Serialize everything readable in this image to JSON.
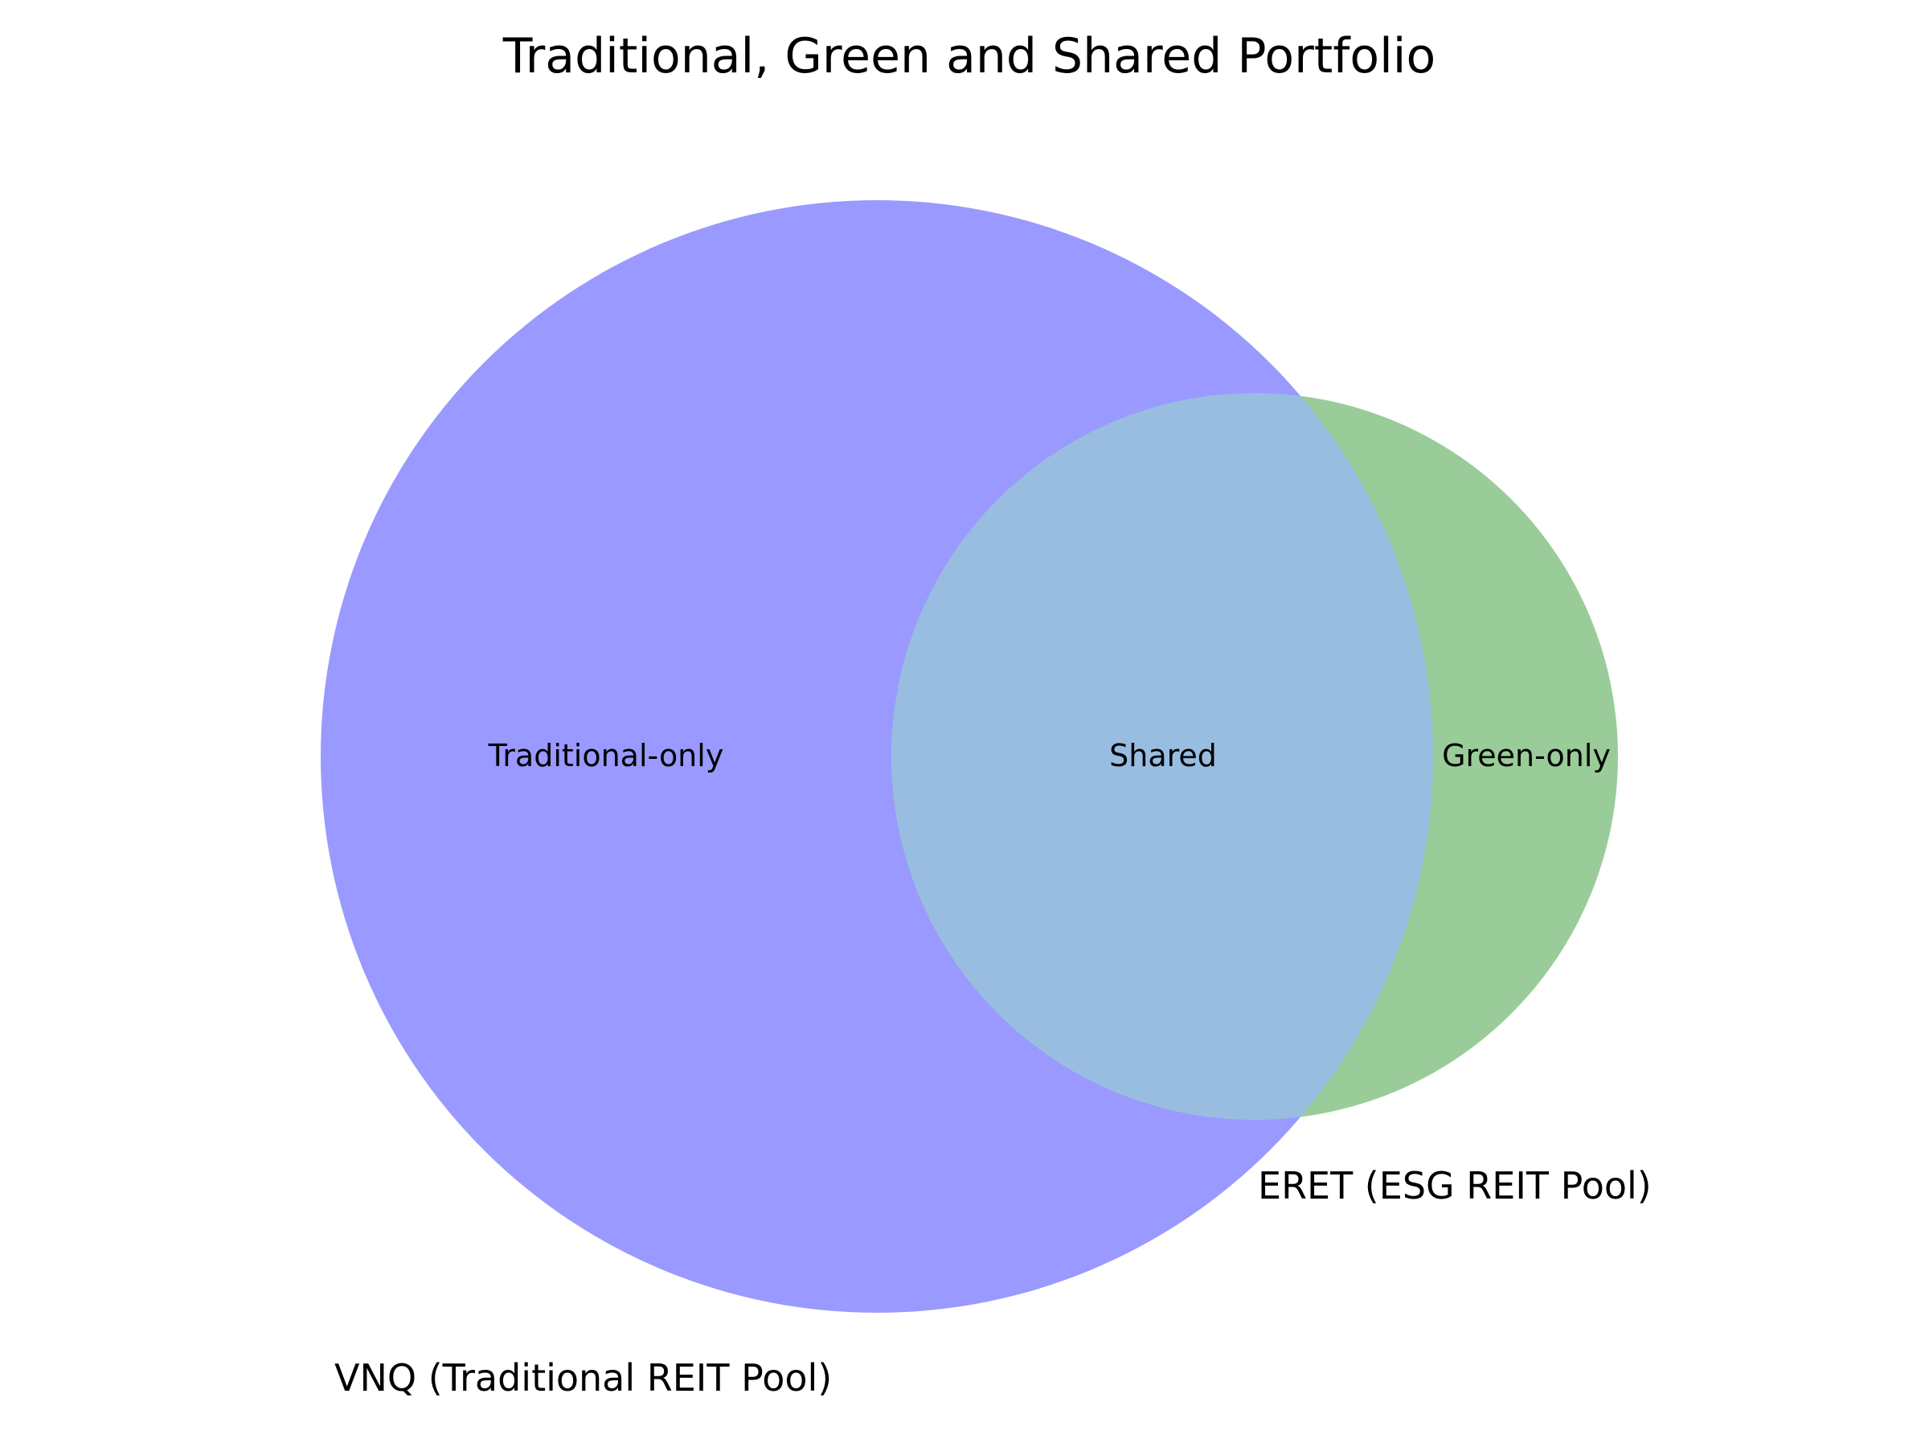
{
  "title": "Traditional, Green and Shared Portfolio",
  "sets": {
    "traditional": {
      "label": "VNQ (Traditional REIT Pool)",
      "color": "#9999ff"
    },
    "green": {
      "label": "ERET (ESG REIT Pool)",
      "color": "#99cc99"
    }
  },
  "regions": {
    "traditional_only": "Traditional-only",
    "shared": "Shared",
    "green_only": "Green-only"
  },
  "colors": {
    "shared_overlap": "#99bde0",
    "background": "#ffffff"
  }
}
